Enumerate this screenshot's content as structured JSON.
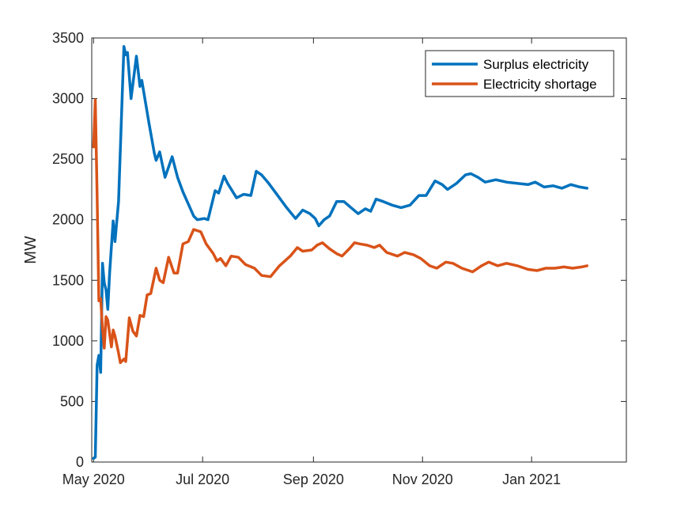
{
  "chart_data": {
    "type": "line",
    "title": "",
    "xlabel": "",
    "ylabel": "MW",
    "ylim": [
      0,
      3500
    ],
    "xlim": [
      "2020-04-30",
      "2021-02-23"
    ],
    "grid": false,
    "legend_position": "top-right",
    "x_ticks": [
      {
        "date": "2020-05-01",
        "label": "May 2020"
      },
      {
        "date": "2020-07-01",
        "label": "Jul 2020"
      },
      {
        "date": "2020-09-01",
        "label": "Sep 2020"
      },
      {
        "date": "2020-11-01",
        "label": "Nov 2020"
      },
      {
        "date": "2021-01-01",
        "label": "Jan 2021"
      }
    ],
    "y_ticks": [
      {
        "value": 0,
        "label": "0"
      },
      {
        "value": 500,
        "label": "500"
      },
      {
        "value": 1000,
        "label": "1000"
      },
      {
        "value": 1500,
        "label": "1500"
      },
      {
        "value": 2000,
        "label": "2000"
      },
      {
        "value": 2500,
        "label": "2500"
      },
      {
        "value": 3000,
        "label": "3000"
      },
      {
        "value": 3500,
        "label": "3500"
      }
    ],
    "series": [
      {
        "name": "Surplus electricity",
        "color": "#0072BD",
        "points": [
          [
            "2020-05-01",
            30
          ],
          [
            "2020-05-02",
            40
          ],
          [
            "2020-05-03",
            800
          ],
          [
            "2020-05-04",
            880
          ],
          [
            "2020-05-05",
            740
          ],
          [
            "2020-05-06",
            1640
          ],
          [
            "2020-05-07",
            1480
          ],
          [
            "2020-05-08",
            1420
          ],
          [
            "2020-05-09",
            1260
          ],
          [
            "2020-05-10",
            1560
          ],
          [
            "2020-05-12",
            1990
          ],
          [
            "2020-05-13",
            1820
          ],
          [
            "2020-05-15",
            2150
          ],
          [
            "2020-05-17",
            3000
          ],
          [
            "2020-05-18",
            3430
          ],
          [
            "2020-05-19",
            3360
          ],
          [
            "2020-05-20",
            3380
          ],
          [
            "2020-05-22",
            3000
          ],
          [
            "2020-05-25",
            3350
          ],
          [
            "2020-05-27",
            3100
          ],
          [
            "2020-05-28",
            3150
          ],
          [
            "2020-06-01",
            2800
          ],
          [
            "2020-06-04",
            2550
          ],
          [
            "2020-06-05",
            2490
          ],
          [
            "2020-06-07",
            2560
          ],
          [
            "2020-06-10",
            2350
          ],
          [
            "2020-06-14",
            2520
          ],
          [
            "2020-06-17",
            2350
          ],
          [
            "2020-06-20",
            2230
          ],
          [
            "2020-06-26",
            2030
          ],
          [
            "2020-06-28",
            2000
          ],
          [
            "2020-07-02",
            2010
          ],
          [
            "2020-07-04",
            2000
          ],
          [
            "2020-07-08",
            2240
          ],
          [
            "2020-07-10",
            2220
          ],
          [
            "2020-07-13",
            2360
          ],
          [
            "2020-07-15",
            2300
          ],
          [
            "2020-07-20",
            2180
          ],
          [
            "2020-07-24",
            2210
          ],
          [
            "2020-07-28",
            2200
          ],
          [
            "2020-07-31",
            2400
          ],
          [
            "2020-08-03",
            2370
          ],
          [
            "2020-08-07",
            2300
          ],
          [
            "2020-08-12",
            2200
          ],
          [
            "2020-08-17",
            2100
          ],
          [
            "2020-08-22",
            2010
          ],
          [
            "2020-08-26",
            2080
          ],
          [
            "2020-08-30",
            2050
          ],
          [
            "2020-09-02",
            2010
          ],
          [
            "2020-09-04",
            1950
          ],
          [
            "2020-09-07",
            2000
          ],
          [
            "2020-09-10",
            2030
          ],
          [
            "2020-09-14",
            2150
          ],
          [
            "2020-09-18",
            2150
          ],
          [
            "2020-09-22",
            2100
          ],
          [
            "2020-09-26",
            2050
          ],
          [
            "2020-09-30",
            2090
          ],
          [
            "2020-10-03",
            2070
          ],
          [
            "2020-10-06",
            2170
          ],
          [
            "2020-10-10",
            2150
          ],
          [
            "2020-10-15",
            2120
          ],
          [
            "2020-10-20",
            2100
          ],
          [
            "2020-10-25",
            2120
          ],
          [
            "2020-10-30",
            2200
          ],
          [
            "2020-11-03",
            2200
          ],
          [
            "2020-11-08",
            2320
          ],
          [
            "2020-11-12",
            2290
          ],
          [
            "2020-11-15",
            2250
          ],
          [
            "2020-11-20",
            2300
          ],
          [
            "2020-11-25",
            2370
          ],
          [
            "2020-11-28",
            2380
          ],
          [
            "2020-12-02",
            2350
          ],
          [
            "2020-12-06",
            2310
          ],
          [
            "2020-12-12",
            2330
          ],
          [
            "2020-12-18",
            2310
          ],
          [
            "2020-12-24",
            2300
          ],
          [
            "2020-12-30",
            2290
          ],
          [
            "2021-01-03",
            2310
          ],
          [
            "2021-01-08",
            2270
          ],
          [
            "2021-01-13",
            2280
          ],
          [
            "2021-01-18",
            2260
          ],
          [
            "2021-01-23",
            2290
          ],
          [
            "2021-01-28",
            2270
          ],
          [
            "2021-02-01",
            2260
          ]
        ]
      },
      {
        "name": "Electricity shortage",
        "color": "#D95319",
        "points": [
          [
            "2020-05-01",
            2600
          ],
          [
            "2020-05-02",
            2990
          ],
          [
            "2020-05-03",
            2200
          ],
          [
            "2020-05-04",
            1330
          ],
          [
            "2020-05-05",
            1350
          ],
          [
            "2020-05-06",
            1100
          ],
          [
            "2020-05-07",
            940
          ],
          [
            "2020-05-08",
            1200
          ],
          [
            "2020-05-09",
            1170
          ],
          [
            "2020-05-11",
            950
          ],
          [
            "2020-05-12",
            1090
          ],
          [
            "2020-05-13",
            1040
          ],
          [
            "2020-05-15",
            900
          ],
          [
            "2020-05-16",
            820
          ],
          [
            "2020-05-18",
            850
          ],
          [
            "2020-05-19",
            830
          ],
          [
            "2020-05-21",
            1190
          ],
          [
            "2020-05-23",
            1080
          ],
          [
            "2020-05-25",
            1040
          ],
          [
            "2020-05-27",
            1210
          ],
          [
            "2020-05-29",
            1200
          ],
          [
            "2020-05-31",
            1380
          ],
          [
            "2020-06-02",
            1390
          ],
          [
            "2020-06-05",
            1600
          ],
          [
            "2020-06-07",
            1500
          ],
          [
            "2020-06-09",
            1480
          ],
          [
            "2020-06-12",
            1690
          ],
          [
            "2020-06-15",
            1560
          ],
          [
            "2020-06-17",
            1560
          ],
          [
            "2020-06-20",
            1800
          ],
          [
            "2020-06-23",
            1820
          ],
          [
            "2020-06-26",
            1920
          ],
          [
            "2020-06-30",
            1900
          ],
          [
            "2020-07-03",
            1800
          ],
          [
            "2020-07-07",
            1720
          ],
          [
            "2020-07-09",
            1660
          ],
          [
            "2020-07-11",
            1680
          ],
          [
            "2020-07-14",
            1620
          ],
          [
            "2020-07-17",
            1700
          ],
          [
            "2020-07-21",
            1690
          ],
          [
            "2020-07-25",
            1630
          ],
          [
            "2020-07-30",
            1600
          ],
          [
            "2020-08-03",
            1540
          ],
          [
            "2020-08-08",
            1530
          ],
          [
            "2020-08-13",
            1620
          ],
          [
            "2020-08-19",
            1700
          ],
          [
            "2020-08-23",
            1770
          ],
          [
            "2020-08-26",
            1740
          ],
          [
            "2020-08-31",
            1750
          ],
          [
            "2020-09-03",
            1790
          ],
          [
            "2020-09-06",
            1810
          ],
          [
            "2020-09-10",
            1760
          ],
          [
            "2020-09-14",
            1720
          ],
          [
            "2020-09-17",
            1700
          ],
          [
            "2020-09-21",
            1760
          ],
          [
            "2020-09-24",
            1810
          ],
          [
            "2020-09-27",
            1800
          ],
          [
            "2020-10-01",
            1790
          ],
          [
            "2020-10-05",
            1770
          ],
          [
            "2020-10-08",
            1790
          ],
          [
            "2020-10-12",
            1730
          ],
          [
            "2020-10-18",
            1700
          ],
          [
            "2020-10-22",
            1730
          ],
          [
            "2020-10-27",
            1710
          ],
          [
            "2020-10-31",
            1680
          ],
          [
            "2020-11-05",
            1620
          ],
          [
            "2020-11-09",
            1600
          ],
          [
            "2020-11-14",
            1650
          ],
          [
            "2020-11-18",
            1640
          ],
          [
            "2020-11-23",
            1600
          ],
          [
            "2020-11-29",
            1570
          ],
          [
            "2020-12-04",
            1620
          ],
          [
            "2020-12-08",
            1650
          ],
          [
            "2020-12-13",
            1620
          ],
          [
            "2020-12-18",
            1640
          ],
          [
            "2020-12-24",
            1620
          ],
          [
            "2020-12-30",
            1590
          ],
          [
            "2021-01-04",
            1580
          ],
          [
            "2021-01-09",
            1600
          ],
          [
            "2021-01-14",
            1600
          ],
          [
            "2021-01-19",
            1610
          ],
          [
            "2021-01-24",
            1600
          ],
          [
            "2021-01-29",
            1610
          ],
          [
            "2021-02-01",
            1620
          ]
        ]
      }
    ]
  }
}
